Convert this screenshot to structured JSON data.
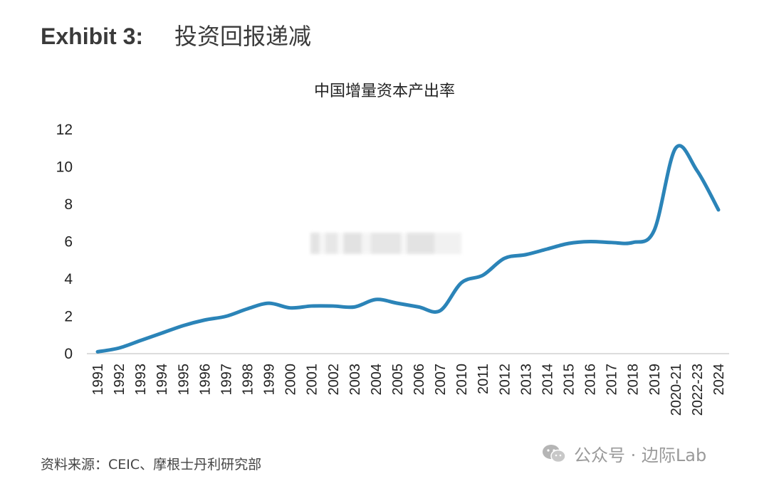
{
  "header": {
    "exhibit_label": "Exhibit 3:",
    "exhibit_title": "投资回报递减"
  },
  "footer": {
    "source": "资料来源：CEIC、摩根士丹利研究部",
    "watermark": "公众号 · 边际Lab"
  },
  "chart_data": {
    "type": "line",
    "title": "中国增量资本产出率",
    "xlabel": "",
    "ylabel": "",
    "categories": [
      "1991",
      "1992",
      "1993",
      "1994",
      "1995",
      "1996",
      "1997",
      "1998",
      "1999",
      "2000",
      "2001",
      "2002",
      "2003",
      "2004",
      "2005",
      "2006",
      "2007",
      "2010",
      "2011",
      "2012",
      "2013",
      "2014",
      "2015",
      "2016",
      "2017",
      "2018",
      "2019",
      "2020-21",
      "2022-23",
      "2024"
    ],
    "series": [
      {
        "values": [
          0.1,
          0.3,
          0.7,
          1.1,
          1.5,
          1.8,
          2.0,
          2.4,
          2.7,
          2.45,
          2.55,
          2.55,
          2.5,
          2.9,
          2.7,
          2.5,
          2.3,
          3.8,
          4.2,
          5.1,
          5.3,
          5.6,
          5.9,
          6.0,
          5.95,
          5.95,
          6.6,
          11.0,
          9.8,
          7.7
        ],
        "color": "#2b84b8"
      }
    ],
    "ylim": [
      0,
      12
    ],
    "yticks": [
      0,
      2,
      4,
      6,
      8,
      10,
      12
    ],
    "grid": false,
    "legend": "none"
  }
}
